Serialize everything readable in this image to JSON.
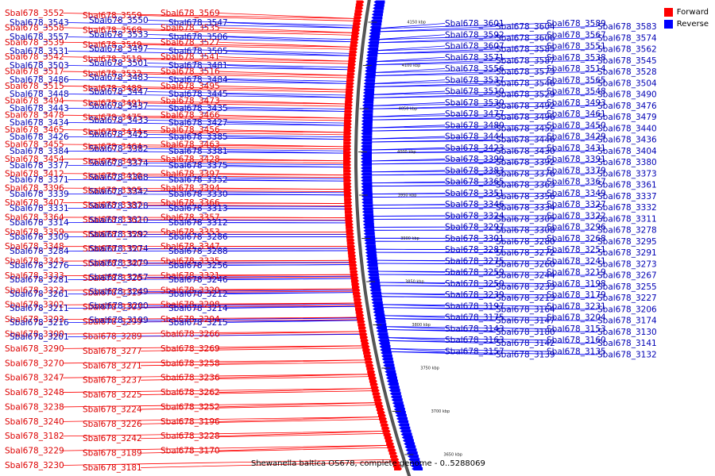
{
  "caption": "Shewanella baltica OS678, complete genome - 0..5288069",
  "legend": {
    "forward": {
      "label": "Forward",
      "color": "#ff0000"
    },
    "reverse": {
      "label": "Reverse",
      "color": "#0000ff"
    }
  },
  "colors": {
    "forward": "#ff0000",
    "reverse": "#0000ff",
    "forward_label": "#dd0000",
    "reverse_label": "#0000b4",
    "backbone": "#555555"
  },
  "genome_scale": [
    "4150 kbp",
    "4100 kbp",
    "4050 kbp",
    "4000 kbp",
    "3950 kbp",
    "3900 kbp",
    "3850 kbp",
    "3800 kbp",
    "3750 kbp",
    "3700 kbp",
    "3650 kbp"
  ],
  "genes": {
    "forward": [
      "Sbal678_3552",
      "Sbal678_3559",
      "Sbal678_3569",
      "Sbal678_3558",
      "Sbal678_3568",
      "Sbal678_3535",
      "Sbal678_3539",
      "Sbal678_3549",
      "Sbal678_3527",
      "Sbal678_3542",
      "Sbal678_3518",
      "Sbal678_3541",
      "Sbal678_3517",
      "Sbal678_3532",
      "Sbal678_3516",
      "Sbal678_3515",
      "Sbal678_3488",
      "Sbal678_3495",
      "Sbal678_3494",
      "Sbal678_3491",
      "Sbal678_3473",
      "Sbal678_3478",
      "Sbal678_3475",
      "Sbal678_3466",
      "Sbal678_3465",
      "Sbal678_3474",
      "Sbal678_3456",
      "Sbal678_3455",
      "Sbal678_3464",
      "Sbal678_3463",
      "Sbal678_3454",
      "Sbal678_3453",
      "Sbal678_3428",
      "Sbal678_3412",
      "Sbal678_3410",
      "Sbal678_3397",
      "Sbal678_3396",
      "Sbal678_3395",
      "Sbal678_3394",
      "Sbal678_3407",
      "Sbal678_3387",
      "Sbal678_3366",
      "Sbal678_3364",
      "Sbal678_3362",
      "Sbal678_3357",
      "Sbal678_3359",
      "Sbal678_3358",
      "Sbal678_3353",
      "Sbal678_3348",
      "Sbal678_3350",
      "Sbal678_3347",
      "Sbal678_3343",
      "Sbal678_3340",
      "Sbal678_3335",
      "Sbal678_3333",
      "Sbal678_3326",
      "Sbal678_3321",
      "Sbal678_3323",
      "Sbal678_3319",
      "Sbal678_3320",
      "Sbal678_3302",
      "Sbal678_3303",
      "Sbal678_3298",
      "Sbal678_3293",
      "Sbal678_3299",
      "Sbal678_3294",
      "Sbal678_3300",
      "Sbal678_3289",
      "Sbal678_3266",
      "Sbal678_3290",
      "Sbal678_3277",
      "Sbal678_3269",
      "Sbal678_3270",
      "Sbal678_3271",
      "Sbal678_3258",
      "Sbal678_3247",
      "Sbal678_3237",
      "Sbal678_3236",
      "Sbal678_3248",
      "Sbal678_3225",
      "Sbal678_3262",
      "Sbal678_3238",
      "Sbal678_3224",
      "Sbal678_3252",
      "Sbal678_3240",
      "Sbal678_3226",
      "Sbal678_3196",
      "Sbal678_3182",
      "Sbal678_3242",
      "Sbal678_3228",
      "Sbal678_3229",
      "Sbal678_3189",
      "Sbal678_3170",
      "Sbal678_3230",
      "Sbal678_3181"
    ],
    "reverse_left": [
      "Sbal678_3543",
      "Sbal678_3550",
      "Sbal678_3547",
      "Sbal678_3557",
      "Sbal678_3533",
      "Sbal678_3506",
      "Sbal678_3531",
      "Sbal678_3497",
      "Sbal678_3505",
      "Sbal678_3503",
      "Sbal678_3501",
      "Sbal678_3481",
      "Sbal678_3486",
      "Sbal678_3483",
      "Sbal678_3484",
      "Sbal678_3448",
      "Sbal678_3447",
      "Sbal678_3445",
      "Sbal678_3443",
      "Sbal678_3437",
      "Sbal678_3435",
      "Sbal678_3434",
      "Sbal678_3433",
      "Sbal678_3427",
      "Sbal678_3426",
      "Sbal678_3425",
      "Sbal678_3385",
      "Sbal678_3384",
      "Sbal678_3382",
      "Sbal678_3381",
      "Sbal678_3377",
      "Sbal678_3374",
      "Sbal678_3375",
      "Sbal678_3371",
      "Sbal678_3368",
      "Sbal678_3352",
      "Sbal678_3339",
      "Sbal678_3342",
      "Sbal678_3330",
      "Sbal678_3331",
      "Sbal678_3328",
      "Sbal678_3313",
      "Sbal678_3314",
      "Sbal678_3310",
      "Sbal678_3312",
      "Sbal678_3309",
      "Sbal678_3292",
      "Sbal678_3286",
      "Sbal678_3284",
      "Sbal678_3274",
      "Sbal678_3288",
      "Sbal678_3276",
      "Sbal678_3279",
      "Sbal678_3256",
      "Sbal678_3281",
      "Sbal678_3257",
      "Sbal678_3246",
      "Sbal678_3261",
      "Sbal678_3249",
      "Sbal678_3212",
      "Sbal678_3211",
      "Sbal678_3200",
      "Sbal678_3214",
      "Sbal678_3216",
      "Sbal678_3199",
      "Sbal678_3215",
      "Sbal678_3201"
    ],
    "reverse_right": [
      "Sbal678_3601",
      "Sbal678_3604",
      "Sbal678_3589",
      "Sbal678_3583",
      "Sbal678_3592",
      "Sbal678_3606",
      "Sbal678_3567",
      "Sbal678_3574",
      "Sbal678_3607",
      "Sbal678_3585",
      "Sbal678_3551",
      "Sbal678_3562",
      "Sbal678_3571",
      "Sbal678_3587",
      "Sbal678_3538",
      "Sbal678_3545",
      "Sbal678_3556",
      "Sbal678_3573",
      "Sbal678_3514",
      "Sbal678_3528",
      "Sbal678_3537",
      "Sbal678_3546",
      "Sbal678_3565",
      "Sbal678_3504",
      "Sbal678_3510",
      "Sbal678_3529",
      "Sbal678_3548",
      "Sbal678_3490",
      "Sbal678_3530",
      "Sbal678_3492",
      "Sbal678_3493",
      "Sbal678_3476",
      "Sbal678_3477",
      "Sbal678_3496",
      "Sbal678_3461",
      "Sbal678_3479",
      "Sbal678_3480",
      "Sbal678_3452",
      "Sbal678_3450",
      "Sbal678_3440",
      "Sbal678_3444",
      "Sbal678_3446",
      "Sbal678_3429",
      "Sbal678_3436",
      "Sbal678_3423",
      "Sbal678_3430",
      "Sbal678_3431",
      "Sbal678_3404",
      "Sbal678_3399",
      "Sbal678_3392",
      "Sbal678_3391",
      "Sbal678_3380",
      "Sbal678_3383",
      "Sbal678_3376",
      "Sbal678_3379",
      "Sbal678_3373",
      "Sbal678_3365",
      "Sbal678_3363",
      "Sbal678_3367",
      "Sbal678_3361",
      "Sbal678_3351",
      "Sbal678_3356",
      "Sbal678_3349",
      "Sbal678_3337",
      "Sbal678_3346",
      "Sbal678_3334",
      "Sbal678_3327",
      "Sbal678_3332",
      "Sbal678_3324",
      "Sbal678_3305",
      "Sbal678_3322",
      "Sbal678_3311",
      "Sbal678_3297",
      "Sbal678_3308",
      "Sbal678_3296",
      "Sbal678_3278",
      "Sbal678_3301",
      "Sbal678_3280",
      "Sbal678_3268",
      "Sbal678_3295",
      "Sbal678_3287",
      "Sbal678_3272",
      "Sbal678_3251",
      "Sbal678_3291",
      "Sbal678_3275",
      "Sbal678_3260",
      "Sbal678_3241",
      "Sbal678_3273",
      "Sbal678_3259",
      "Sbal678_3244",
      "Sbal678_3219",
      "Sbal678_3267",
      "Sbal678_3250",
      "Sbal678_3233",
      "Sbal678_3198",
      "Sbal678_3255",
      "Sbal678_3239",
      "Sbal678_3213",
      "Sbal678_3179",
      "Sbal678_3227",
      "Sbal678_3197",
      "Sbal678_3164",
      "Sbal678_3231",
      "Sbal678_3206",
      "Sbal678_3175",
      "Sbal678_3147",
      "Sbal678_3204",
      "Sbal678_3174",
      "Sbal678_3143",
      "Sbal678_3180",
      "Sbal678_3153",
      "Sbal678_3130",
      "Sbal678_3163",
      "Sbal678_3142",
      "Sbal678_3160",
      "Sbal678_3141",
      "Sbal678_3157",
      "Sbal678_3139",
      "Sbal678_3135",
      "Sbal678_3132"
    ]
  }
}
